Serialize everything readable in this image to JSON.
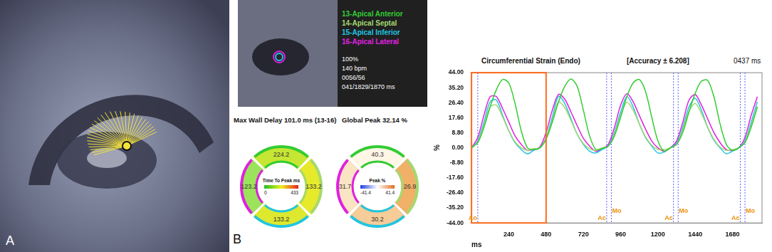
{
  "panel_labels": [
    "A",
    "B"
  ],
  "ultrasound_info": [
    "100%",
    "140 bpm",
    "0056/56",
    "041/1829/1870 ms"
  ],
  "bullseyes": [
    {
      "title": "Max Wall Delay 101.0 ms (13-16)",
      "center_label": "Time To Peak ms",
      "scale": [
        0,
        433
      ],
      "segments": [
        {
          "value": 224.2,
          "color": "#c6e634"
        },
        {
          "value": 133.2,
          "color": "#e6ea2a"
        },
        {
          "value": 133.2,
          "color": "#dde82e"
        },
        {
          "value": 123.2,
          "color": "#9be35a"
        }
      ]
    },
    {
      "title": "Global Peak 32.14 %",
      "center_label": "Peak %",
      "scale": [
        -41.4,
        41.4
      ],
      "segments": [
        {
          "value": 40.3,
          "color": "#fff6e6"
        },
        {
          "value": 26.9,
          "color": "#f0b068"
        },
        {
          "value": 30.2,
          "color": "#f6cc98"
        },
        {
          "value": 31.7,
          "color": "#fbe4c4"
        }
      ]
    }
  ],
  "chart_data": {
    "type": "line",
    "title": "Circumferential Strain (Endo)",
    "subtitle": "[Accuracy ± 6.208]",
    "annotation": "0437 ms",
    "x_label": "ms",
    "y_label": "%",
    "x": [
      0,
      40,
      80,
      120,
      160,
      200,
      240,
      280,
      320,
      360,
      400,
      440,
      480,
      520,
      560,
      600,
      640,
      680,
      720,
      760,
      800,
      840,
      880,
      920,
      960,
      1000,
      1040,
      1080,
      1120,
      1160,
      1200,
      1240,
      1280,
      1320,
      1360,
      1400,
      1440,
      1480,
      1520,
      1560,
      1600,
      1640,
      1680,
      1720,
      1760,
      1800,
      1840
    ],
    "series": [
      {
        "name": "13-Apical Anterior",
        "color": "#33cc33",
        "values": [
          0,
          3,
          12,
          24,
          34,
          40,
          38,
          26,
          10,
          0,
          -1,
          0,
          5,
          15,
          27,
          36,
          40.3,
          36,
          22,
          7,
          -1,
          -0.5,
          1,
          7,
          18,
          30,
          38,
          40,
          33,
          18,
          4,
          -2,
          0,
          2,
          9,
          21,
          32,
          39,
          39.5,
          30,
          14,
          2,
          -1.5,
          0,
          3,
          12,
          24
        ]
      },
      {
        "name": "14-Apical Septal",
        "color": "#a5d86e",
        "values": [
          0,
          3.5,
          13,
          24,
          25,
          18,
          10,
          3.5,
          0,
          -1.5,
          -0.5,
          0,
          5.5,
          16,
          26.9,
          23.5,
          16,
          8,
          2.5,
          -0.5,
          -1.5,
          0,
          1,
          8,
          19,
          26.7,
          22,
          14,
          6.5,
          1.5,
          -1,
          -1,
          0,
          2,
          10.5,
          21.5,
          26,
          20,
          12,
          5,
          0.5,
          -1.5,
          -1,
          0,
          3.5,
          13,
          24
        ]
      },
      {
        "name": "15-Apical Inferior",
        "color": "#22c5e0",
        "values": [
          0,
          4,
          15,
          27,
          28,
          19,
          10,
          3,
          -1,
          -3.5,
          -1.5,
          0,
          6,
          18,
          30.2,
          26,
          17,
          8,
          2,
          -2,
          -3,
          -1,
          1,
          9,
          21,
          30,
          24,
          14,
          6,
          1,
          -3,
          -2.5,
          0,
          2.5,
          12,
          24,
          29,
          22,
          12,
          4.5,
          0,
          -3.5,
          -2,
          0,
          4,
          15,
          27
        ]
      },
      {
        "name": "16-Apical Lateral",
        "color": "#e020e0",
        "values": [
          0,
          6,
          19,
          30,
          30,
          23,
          15,
          7,
          2,
          -1.5,
          -1,
          0.5,
          9,
          22,
          31.3,
          28.5,
          21,
          13,
          5.5,
          1,
          -2,
          -0.5,
          2,
          12,
          25,
          31.7,
          27,
          19,
          11,
          4,
          0,
          -2,
          0,
          4,
          15,
          28,
          31.2,
          25,
          17,
          9,
          3,
          -1,
          -1.5,
          0,
          6,
          19,
          30
        ]
      }
    ],
    "xlim": [
      0,
      1870
    ],
    "xticks": [
      240,
      480,
      720,
      960,
      1200,
      1440,
      1680
    ],
    "ylim": [
      -44,
      44
    ],
    "yticks": [
      {
        "value": 44,
        "label": "44.00"
      },
      {
        "value": 35.2,
        "label": "35.20"
      },
      {
        "value": 26.4,
        "label": "26.40"
      },
      {
        "value": 17.6,
        "label": "17.60"
      },
      {
        "value": 8.8,
        "label": "8.80"
      },
      {
        "value": 0,
        "label": "0.00"
      },
      {
        "value": -8.8,
        "label": "-8.80"
      },
      {
        "value": -17.6,
        "label": "-17.60"
      },
      {
        "value": -26.4,
        "label": "-26.40"
      },
      {
        "value": -35.2,
        "label": "-35.20"
      },
      {
        "value": -44,
        "label": "-44.00"
      }
    ],
    "grid": false,
    "marker": "none",
    "selection": [
      0,
      480
    ],
    "events": [
      {
        "label": "Ao",
        "x": 40
      },
      {
        "label": "Ac",
        "x": 870
      },
      {
        "label": "Mo",
        "x": 900
      },
      {
        "label": "Ac",
        "x": 1300
      },
      {
        "label": "Mo",
        "x": 1330
      },
      {
        "label": "Ac",
        "x": 1730
      },
      {
        "label": "Mo",
        "x": 1760
      }
    ]
  }
}
